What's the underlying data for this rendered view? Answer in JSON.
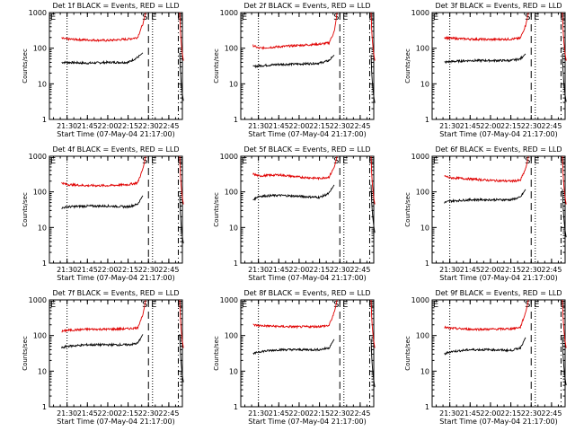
{
  "colors": {
    "events": "#000000",
    "lld": "#e00000",
    "axis": "#000000",
    "background": "#ffffff"
  },
  "chart_data": [
    {
      "type": "line",
      "title": "Det 1f BLACK = Events, RED = LLD",
      "xlabel": "Start Time (07-May-04 21:17:00)",
      "ylabel": "Counts/sec",
      "x_tick_labels": [
        "21:30",
        "21:45",
        "22:00",
        "22:15",
        "22:30",
        "22:45"
      ],
      "y_tick_labels": [
        "1",
        "10",
        "100",
        "1000"
      ],
      "y_scale": "log",
      "ylim": [
        1,
        1000
      ],
      "markers": [
        {
          "label": "S"
        },
        {
          "label": "E"
        }
      ],
      "series": [
        {
          "color": "#000000",
          "x": [
            "21:26",
            "21:30",
            "21:45",
            "22:00",
            "22:15",
            "22:22",
            "22:26"
          ],
          "values": [
            40,
            40,
            38,
            40,
            40,
            55,
            75
          ]
        },
        {
          "color": "#e00000",
          "x": [
            "21:26",
            "21:30",
            "21:45",
            "22:00",
            "22:15",
            "22:22",
            "22:26",
            "22:28"
          ],
          "values": [
            190,
            180,
            170,
            165,
            180,
            200,
            500,
            1000
          ]
        }
      ]
    },
    {
      "type": "line",
      "title": "Det 2f BLACK = Events, RED = LLD",
      "xlabel": "Start Time (07-May-04 21:17:00)",
      "ylabel": "Counts/sec",
      "x_tick_labels": [
        "21:30",
        "21:45",
        "22:00",
        "22:15",
        "22:30",
        "22:45"
      ],
      "y_tick_labels": [
        "1",
        "10",
        "100",
        "1000"
      ],
      "y_scale": "log",
      "ylim": [
        1,
        1000
      ],
      "markers": [
        {
          "label": "S"
        },
        {
          "label": "E"
        }
      ],
      "series": [
        {
          "color": "#000000",
          "x": [
            "21:26",
            "21:30",
            "21:45",
            "22:00",
            "22:15",
            "22:22",
            "22:26"
          ],
          "values": [
            30,
            32,
            35,
            36,
            38,
            45,
            65
          ]
        },
        {
          "color": "#e00000",
          "x": [
            "21:26",
            "21:30",
            "21:45",
            "22:00",
            "22:15",
            "22:22",
            "22:26",
            "22:28"
          ],
          "values": [
            120,
            100,
            110,
            120,
            130,
            140,
            300,
            1000
          ]
        }
      ]
    },
    {
      "type": "line",
      "title": "Det 3f BLACK = Events, RED = LLD",
      "xlabel": "Start Time (07-May-04 21:17:00)",
      "ylabel": "Counts/sec",
      "x_tick_labels": [
        "21:30",
        "21:45",
        "22:00",
        "22:15",
        "22:30",
        "22:45"
      ],
      "y_tick_labels": [
        "1",
        "10",
        "100",
        "1000"
      ],
      "y_scale": "log",
      "ylim": [
        1,
        1000
      ],
      "markers": [
        {
          "label": "S"
        },
        {
          "label": "E"
        }
      ],
      "series": [
        {
          "color": "#000000",
          "x": [
            "21:26",
            "21:30",
            "21:45",
            "22:00",
            "22:15",
            "22:22",
            "22:26"
          ],
          "values": [
            40,
            42,
            45,
            45,
            45,
            50,
            70
          ]
        },
        {
          "color": "#e00000",
          "x": [
            "21:26",
            "21:30",
            "21:45",
            "22:00",
            "22:15",
            "22:22",
            "22:26",
            "22:28"
          ],
          "values": [
            200,
            190,
            180,
            175,
            180,
            190,
            450,
            1000
          ]
        }
      ]
    },
    {
      "type": "line",
      "title": "Det 4f BLACK = Events, RED = LLD",
      "xlabel": "Start Time (07-May-04 21:17:00)",
      "ylabel": "Counts/sec",
      "x_tick_labels": [
        "21:30",
        "21:45",
        "22:00",
        "22:15",
        "22:30",
        "22:45"
      ],
      "y_tick_labels": [
        "1",
        "10",
        "100",
        "1000"
      ],
      "y_scale": "log",
      "ylim": [
        1,
        1000
      ],
      "markers": [
        {
          "label": "S"
        },
        {
          "label": "E"
        }
      ],
      "series": [
        {
          "color": "#000000",
          "x": [
            "21:26",
            "21:30",
            "21:45",
            "22:00",
            "22:15",
            "22:22",
            "22:26"
          ],
          "values": [
            35,
            38,
            40,
            40,
            38,
            45,
            80
          ]
        },
        {
          "color": "#e00000",
          "x": [
            "21:26",
            "21:30",
            "21:45",
            "22:00",
            "22:15",
            "22:22",
            "22:26",
            "22:28"
          ],
          "values": [
            180,
            160,
            150,
            150,
            160,
            180,
            450,
            1000
          ]
        }
      ]
    },
    {
      "type": "line",
      "title": "Det 5f BLACK = Events, RED = LLD",
      "xlabel": "Start Time (07-May-04 21:17:00)",
      "ylabel": "Counts/sec",
      "x_tick_labels": [
        "21:30",
        "21:45",
        "22:00",
        "22:15",
        "22:30",
        "22:45"
      ],
      "y_tick_labels": [
        "1",
        "10",
        "100",
        "1000"
      ],
      "y_scale": "log",
      "ylim": [
        1,
        1000
      ],
      "markers": [
        {
          "label": "S"
        },
        {
          "label": "E"
        }
      ],
      "series": [
        {
          "color": "#000000",
          "x": [
            "21:26",
            "21:30",
            "21:45",
            "22:00",
            "22:15",
            "22:22",
            "22:26"
          ],
          "values": [
            60,
            75,
            80,
            75,
            70,
            90,
            160
          ]
        },
        {
          "color": "#e00000",
          "x": [
            "21:26",
            "21:30",
            "21:45",
            "22:00",
            "22:15",
            "22:22",
            "22:26",
            "22:28"
          ],
          "values": [
            320,
            280,
            300,
            260,
            240,
            260,
            500,
            1000
          ]
        }
      ]
    },
    {
      "type": "line",
      "title": "Det 6f BLACK = Events, RED = LLD",
      "xlabel": "Start Time (07-May-04 21:17:00)",
      "ylabel": "Counts/sec",
      "x_tick_labels": [
        "21:30",
        "21:45",
        "22:00",
        "22:15",
        "22:30",
        "22:45"
      ],
      "y_tick_labels": [
        "1",
        "10",
        "100",
        "1000"
      ],
      "y_scale": "log",
      "ylim": [
        1,
        1000
      ],
      "markers": [
        {
          "label": "S"
        },
        {
          "label": "E"
        }
      ],
      "series": [
        {
          "color": "#000000",
          "x": [
            "21:26",
            "21:30",
            "21:45",
            "22:00",
            "22:15",
            "22:22",
            "22:26"
          ],
          "values": [
            50,
            55,
            60,
            60,
            60,
            70,
            120
          ]
        },
        {
          "color": "#e00000",
          "x": [
            "21:26",
            "21:30",
            "21:45",
            "22:00",
            "22:15",
            "22:22",
            "22:26",
            "22:28"
          ],
          "values": [
            280,
            250,
            230,
            210,
            200,
            210,
            450,
            1000
          ]
        }
      ]
    },
    {
      "type": "line",
      "title": "Det 7f BLACK = Events, RED = LLD",
      "xlabel": "Start Time (07-May-04 21:17:00)",
      "ylabel": "Counts/sec",
      "x_tick_labels": [
        "21:30",
        "21:45",
        "22:00",
        "22:15",
        "22:30",
        "22:45"
      ],
      "y_tick_labels": [
        "1",
        "10",
        "100",
        "1000"
      ],
      "y_scale": "log",
      "ylim": [
        1,
        1000
      ],
      "markers": [
        {
          "label": "S"
        },
        {
          "label": "E"
        }
      ],
      "series": [
        {
          "color": "#000000",
          "x": [
            "21:26",
            "21:30",
            "21:45",
            "22:00",
            "22:15",
            "22:22",
            "22:26"
          ],
          "values": [
            45,
            50,
            55,
            55,
            55,
            60,
            110
          ]
        },
        {
          "color": "#e00000",
          "x": [
            "21:26",
            "21:30",
            "21:45",
            "22:00",
            "22:15",
            "22:22",
            "22:26",
            "22:28"
          ],
          "values": [
            130,
            140,
            150,
            150,
            155,
            165,
            400,
            1000
          ]
        }
      ]
    },
    {
      "type": "line",
      "title": "Det 8f BLACK = Events, RED = LLD",
      "xlabel": "Start Time (07-May-04 21:17:00)",
      "ylabel": "Counts/sec",
      "x_tick_labels": [
        "21:30",
        "21:45",
        "22:00",
        "22:15",
        "22:30",
        "22:45"
      ],
      "y_tick_labels": [
        "1",
        "10",
        "100",
        "1000"
      ],
      "y_scale": "log",
      "ylim": [
        1,
        1000
      ],
      "markers": [
        {
          "label": "S"
        },
        {
          "label": "E"
        }
      ],
      "series": [
        {
          "color": "#000000",
          "x": [
            "21:26",
            "21:30",
            "21:45",
            "22:00",
            "22:15",
            "22:22",
            "22:26"
          ],
          "values": [
            30,
            35,
            40,
            40,
            40,
            45,
            80
          ]
        },
        {
          "color": "#e00000",
          "x": [
            "21:26",
            "21:30",
            "21:45",
            "22:00",
            "22:15",
            "22:22",
            "22:26",
            "22:28"
          ],
          "values": [
            200,
            190,
            180,
            175,
            180,
            190,
            450,
            1000
          ]
        }
      ]
    },
    {
      "type": "line",
      "title": "Det 9f BLACK = Events, RED = LLD",
      "xlabel": "Start Time (07-May-04 21:17:00)",
      "ylabel": "Counts/sec",
      "x_tick_labels": [
        "21:30",
        "21:45",
        "22:00",
        "22:15",
        "22:30",
        "22:45"
      ],
      "y_tick_labels": [
        "1",
        "10",
        "100",
        "1000"
      ],
      "y_scale": "log",
      "ylim": [
        1,
        1000
      ],
      "markers": [
        {
          "label": "S"
        },
        {
          "label": "E"
        }
      ],
      "series": [
        {
          "color": "#000000",
          "x": [
            "21:26",
            "21:30",
            "21:45",
            "22:00",
            "22:15",
            "22:22",
            "22:26"
          ],
          "values": [
            30,
            35,
            40,
            40,
            38,
            45,
            90
          ]
        },
        {
          "color": "#e00000",
          "x": [
            "21:26",
            "21:30",
            "21:45",
            "22:00",
            "22:15",
            "22:22",
            "22:26",
            "22:28"
          ],
          "values": [
            170,
            160,
            150,
            150,
            155,
            170,
            450,
            1000
          ]
        }
      ]
    }
  ]
}
